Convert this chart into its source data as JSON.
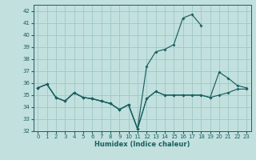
{
  "xlabel": "Humidex (Indice chaleur)",
  "xlim": [
    -0.5,
    23.5
  ],
  "ylim": [
    32,
    42.5
  ],
  "yticks": [
    32,
    33,
    34,
    35,
    36,
    37,
    38,
    39,
    40,
    41,
    42
  ],
  "xticks": [
    0,
    1,
    2,
    3,
    4,
    5,
    6,
    7,
    8,
    9,
    10,
    11,
    12,
    13,
    14,
    15,
    16,
    17,
    18,
    19,
    20,
    21,
    22,
    23
  ],
  "background_color": "#c2e0de",
  "grid_color": "#9ec8c6",
  "line_color": "#1a6060",
  "series": [
    {
      "x": [
        0,
        1,
        2,
        3,
        4,
        5,
        6,
        7,
        8,
        9,
        10,
        11,
        12,
        13,
        14,
        15,
        16,
        17,
        18
      ],
      "y": [
        35.6,
        35.9,
        34.8,
        34.5,
        35.2,
        34.8,
        34.7,
        34.5,
        34.3,
        33.8,
        34.2,
        32.2,
        37.4,
        38.6,
        38.8,
        39.2,
        41.4,
        41.7,
        40.8
      ]
    },
    {
      "x": [
        0,
        1,
        2,
        3,
        4,
        5,
        6,
        7,
        8,
        9,
        10,
        11,
        12,
        13,
        14,
        15,
        16,
        17,
        18,
        19,
        20,
        21,
        22,
        23
      ],
      "y": [
        35.6,
        35.9,
        34.8,
        34.5,
        35.2,
        34.8,
        34.7,
        34.5,
        34.3,
        33.8,
        34.2,
        32.2,
        34.7,
        35.3,
        35.0,
        35.0,
        35.0,
        35.0,
        35.0,
        34.8,
        35.0,
        35.2,
        35.5,
        35.5
      ]
    },
    {
      "x": [
        0,
        1,
        2,
        3,
        4,
        5,
        6,
        7,
        8,
        9,
        10,
        11,
        12,
        13,
        14,
        15,
        16,
        17,
        18,
        19,
        20,
        21,
        22,
        23
      ],
      "y": [
        35.6,
        35.9,
        34.8,
        34.5,
        35.2,
        34.8,
        34.7,
        34.5,
        34.3,
        33.8,
        34.2,
        32.2,
        34.7,
        35.3,
        35.0,
        35.0,
        35.0,
        35.0,
        35.0,
        34.8,
        36.9,
        36.4,
        35.8,
        35.6
      ]
    }
  ]
}
